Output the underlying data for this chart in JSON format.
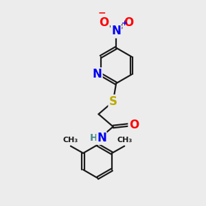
{
  "bg_color": "#ececec",
  "bond_color": "#1a1a1a",
  "bond_width": 1.6,
  "dbo": 0.06,
  "atom_colors": {
    "N": "#0000ee",
    "O": "#ff0000",
    "S": "#bbaa00",
    "H": "#4a8a8a",
    "C": "#1a1a1a"
  },
  "fs": 12,
  "fss": 10
}
